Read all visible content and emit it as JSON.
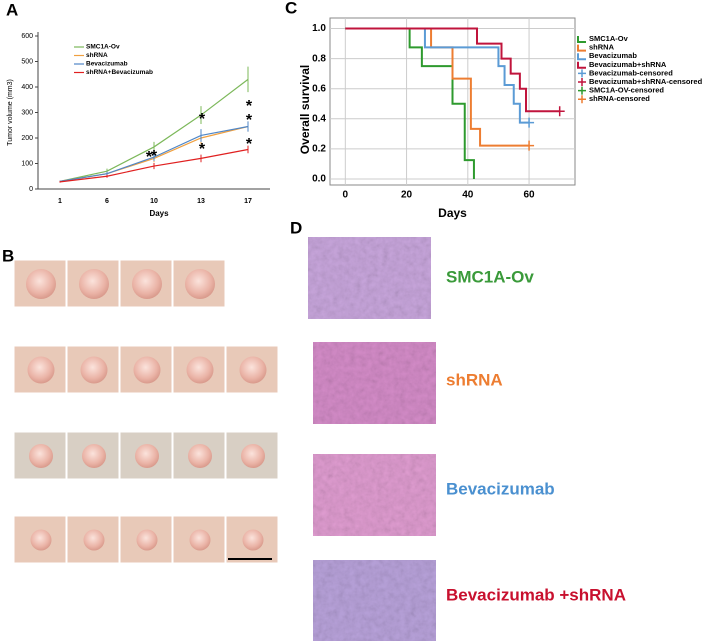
{
  "panels": {
    "a": "A",
    "b": "B",
    "c": "C",
    "d": "D"
  },
  "chart_data": [
    {
      "type": "line",
      "categories": [
        "1",
        "6",
        "10",
        "13",
        "17"
      ],
      "xlabel": "Days",
      "ylabel": "Tumor volume (mm3)",
      "ylim": [
        0,
        600
      ],
      "yticks": [
        0,
        100,
        200,
        300,
        400,
        500,
        600
      ],
      "series": [
        {
          "name": "SMC1A-Ov",
          "color": "#7cb85a",
          "values": [
            30,
            70,
            165,
            290,
            430
          ],
          "errors": [
            3,
            10,
            20,
            35,
            50
          ]
        },
        {
          "name": "shRNA",
          "color": "#f0a040",
          "values": [
            30,
            60,
            120,
            200,
            245
          ],
          "errors": [
            3,
            8,
            15,
            25,
            20
          ]
        },
        {
          "name": "Bevacizumab",
          "color": "#4f86c6",
          "values": [
            30,
            60,
            125,
            210,
            245
          ],
          "errors": [
            3,
            8,
            15,
            25,
            20
          ]
        },
        {
          "name": "shRNA+Bevacizumab",
          "color": "#e02020",
          "values": [
            28,
            50,
            90,
            120,
            155
          ],
          "errors": [
            3,
            6,
            12,
            15,
            15
          ]
        }
      ],
      "annotations": [
        "*",
        "*",
        "*",
        "*",
        "*",
        "*",
        "*"
      ]
    },
    {
      "type": "survival",
      "xlabel": "Days",
      "ylabel": "Overall survival",
      "xlim": [
        -5,
        75
      ],
      "xticks": [
        0,
        20,
        40,
        60
      ],
      "ylim": [
        -0.04,
        1.07
      ],
      "yticks": [
        {
          "value": 0,
          "label": "0.0"
        },
        0.2,
        0.4,
        0.6,
        0.8,
        {
          "value": 1,
          "label": "1.0"
        }
      ],
      "grid": true,
      "series": [
        {
          "name": "SMC1A-Ov",
          "color": "#2e9a2e",
          "style": "step",
          "x": [
            0,
            21,
            25,
            35,
            39,
            42
          ],
          "values": [
            1,
            0.875,
            0.75,
            0.5,
            0.125,
            0
          ]
        },
        {
          "name": "shRNA",
          "color": "#ed7d31",
          "style": "step",
          "x": [
            0,
            28,
            35,
            41,
            44,
            60
          ],
          "values": [
            1,
            0.875,
            0.667,
            0.333,
            0.222,
            0.222
          ]
        },
        {
          "name": "Bevacizumab",
          "color": "#5b9bd5",
          "style": "step",
          "x": [
            0,
            26,
            50,
            52,
            55,
            57,
            60
          ],
          "values": [
            1,
            0.875,
            0.75,
            0.625,
            0.5,
            0.375,
            0.375
          ]
        },
        {
          "name": "Bevacizumab+shRNA",
          "color": "#c0143c",
          "style": "step",
          "x": [
            0,
            43,
            51,
            54,
            57,
            59,
            70
          ],
          "values": [
            1,
            0.9,
            0.8,
            0.7,
            0.6,
            0.45,
            0.45
          ]
        },
        {
          "name": "Bevacizumab-censored",
          "color": "#5b9bd5",
          "style": "censored",
          "x": [
            60
          ],
          "values": [
            0.375
          ]
        },
        {
          "name": "Bevacizumab+shRNA-censored",
          "color": "#c0143c",
          "style": "censored",
          "x": [
            70
          ],
          "values": [
            0.45
          ]
        },
        {
          "name": "SMC1A-OV-censored",
          "color": "#2e9a2e",
          "style": "censored",
          "x": [],
          "values": []
        },
        {
          "name": "shRNA-censored",
          "color": "#ed7d31",
          "style": "censored",
          "x": [
            60
          ],
          "values": [
            0.222
          ]
        }
      ]
    }
  ],
  "panel_d": {
    "labels": [
      {
        "text": "SMC1A-Ov",
        "color": "#3a9a3a"
      },
      {
        "text": "shRNA",
        "color": "#ed7d31"
      },
      {
        "text": "Bevacizumab",
        "color": "#4a90d0"
      },
      {
        "text": "Bevacizumab +shRNA",
        "color": "#c8102e"
      }
    ]
  }
}
